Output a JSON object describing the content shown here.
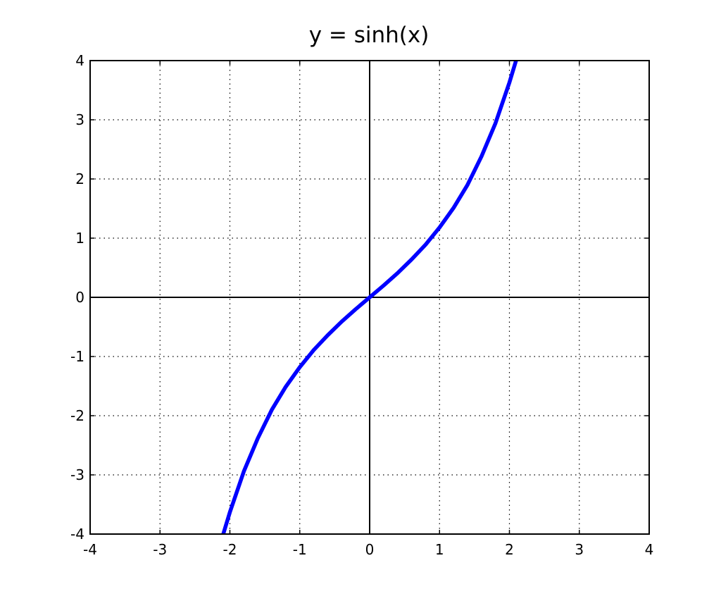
{
  "chart_data": {
    "type": "line",
    "title": "y = sinh(x)",
    "xlabel": "",
    "ylabel": "",
    "xlim": [
      -4,
      4
    ],
    "ylim": [
      -4,
      4
    ],
    "xticks": [
      -4,
      -3,
      -2,
      -1,
      0,
      1,
      2,
      3,
      4
    ],
    "yticks": [
      -4,
      -3,
      -2,
      -1,
      0,
      1,
      2,
      3,
      4
    ],
    "xtick_labels": [
      "-4",
      "-3",
      "-2",
      "-1",
      "0",
      "1",
      "2",
      "3",
      "4"
    ],
    "ytick_labels": [
      "-4",
      "-3",
      "-2",
      "-1",
      "0",
      "1",
      "2",
      "3",
      "4"
    ],
    "grid": true,
    "grid_style": "dotted",
    "axes_through_origin": true,
    "series": [
      {
        "function": "sinh(x)",
        "color": "#0000ff",
        "x": [
          -2.1,
          -2.0,
          -1.8,
          -1.6,
          -1.4,
          -1.2,
          -1.0,
          -0.8,
          -0.6,
          -0.4,
          -0.2,
          0.0,
          0.2,
          0.4,
          0.6,
          0.8,
          1.0,
          1.2,
          1.4,
          1.6,
          1.8,
          2.0,
          2.1
        ],
        "y": [
          -4.02,
          -3.63,
          -2.94,
          -2.38,
          -1.9,
          -1.51,
          -1.18,
          -0.89,
          -0.64,
          -0.41,
          -0.2,
          0.0,
          0.2,
          0.41,
          0.64,
          0.89,
          1.18,
          1.51,
          1.9,
          2.38,
          2.94,
          3.63,
          4.02
        ]
      }
    ]
  }
}
